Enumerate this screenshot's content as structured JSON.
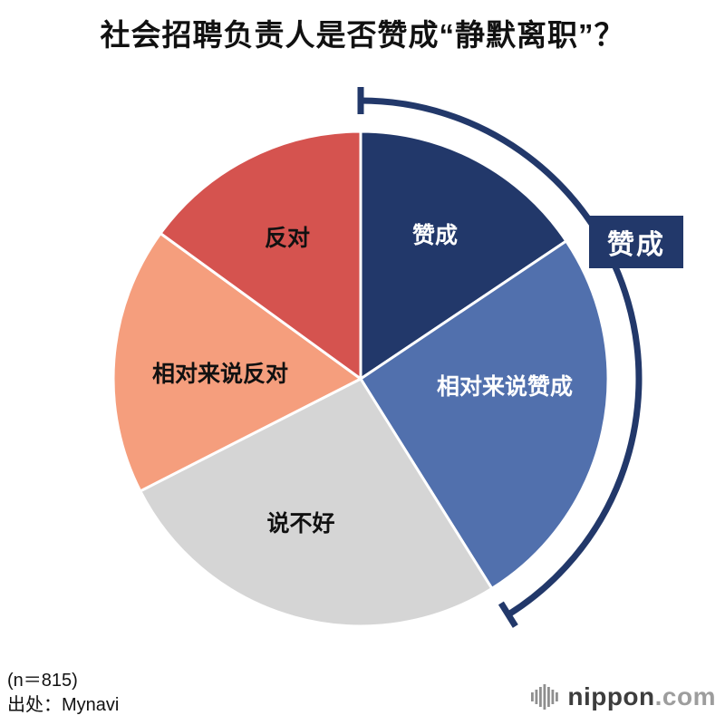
{
  "title": "社会招聘负责人是否赞成“静默离职”？",
  "footer": {
    "sample_size": "(n＝815)",
    "source": "出处：Mynavi"
  },
  "logo": {
    "brand": "nippon",
    "tld": ".com",
    "icon": "soundwave-icon",
    "brand_color": "#3d3d3d",
    "tld_color": "#9d9d9d",
    "icon_color": "#8f8f8f"
  },
  "chart_data": {
    "type": "pie",
    "title": "社会招聘负责人是否赞成“静默离职”？",
    "start_angle_deg": 0,
    "direction": "clockwise",
    "values_are_percent": true,
    "values_shown_on_chart": false,
    "slices": [
      {
        "label": "赞成",
        "value": 15.6,
        "color": "#22386a",
        "label_color": "#ffffff"
      },
      {
        "label": "相对来说赞成",
        "value": 25.5,
        "color": "#5170ad",
        "label_color": "#ffffff"
      },
      {
        "label": "说不好",
        "value": 26.4,
        "color": "#d5d5d5",
        "label_color": "#111111"
      },
      {
        "label": "相对来说反对",
        "value": 17.5,
        "color": "#f59e7d",
        "label_color": "#111111"
      },
      {
        "label": "反对",
        "value": 15.0,
        "color": "#d5534f",
        "label_color": "#111111"
      }
    ],
    "annotation": {
      "label": "赞成",
      "spans_slices": [
        0,
        1
      ],
      "color": "#22386a",
      "text_color": "#ffffff"
    }
  }
}
